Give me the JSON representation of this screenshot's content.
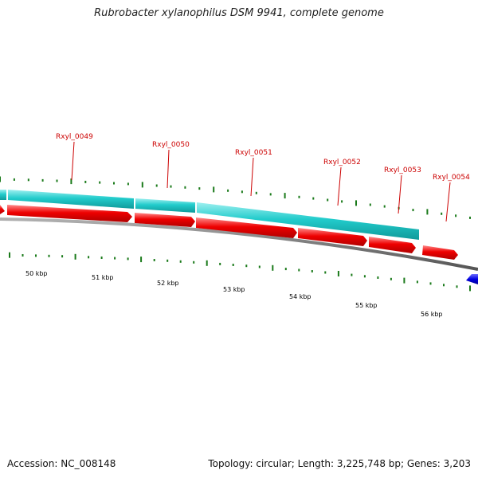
{
  "title": "Rubrobacter xylanophilus DSM 9941, complete genome",
  "footer": {
    "accession": "Accession: NC_008148",
    "summary": "Topology: circular; Length: 3,225,748 bp; Genes: 3,203"
  },
  "colors": {
    "gene_label": "#cc0000",
    "cds_red": "#e60000",
    "gene_cyan": "#20c8c8",
    "backbone": "#808080",
    "tick_green": "#1a7a1a",
    "blue_feature": "#0000e0"
  },
  "gene_labels": [
    {
      "text": "Rxyl_0049"
    },
    {
      "text": "Rxyl_0050"
    },
    {
      "text": "Rxyl_0051"
    },
    {
      "text": "Rxyl_0052"
    },
    {
      "text": "Rxyl_0053"
    },
    {
      "text": "Rxyl_0054"
    }
  ],
  "kbp_labels": [
    "50 kbp",
    "51 kbp",
    "52 kbp",
    "53 kbp",
    "54 kbp",
    "55 kbp",
    "56 kbp"
  ]
}
